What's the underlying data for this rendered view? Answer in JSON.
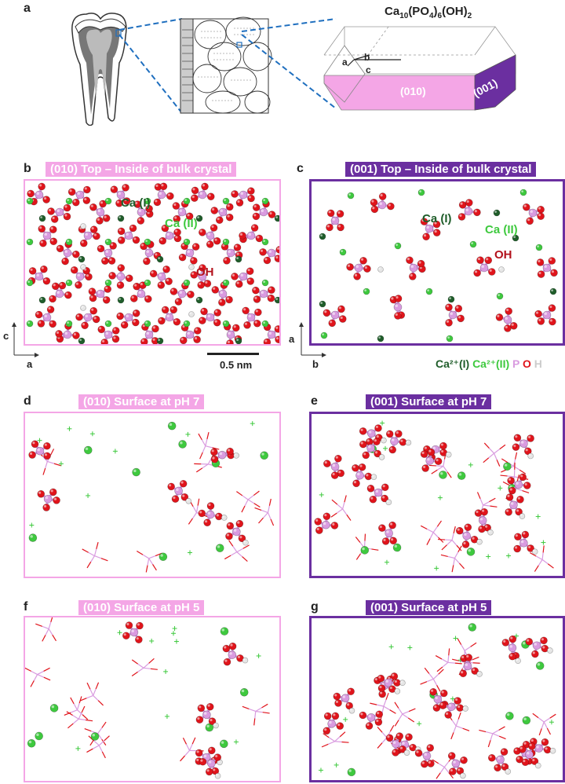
{
  "panel_a": {
    "label": "a",
    "formula_base": "Ca",
    "formula_sub1": "10",
    "formula_mid": "(PO",
    "formula_sub2": "4",
    "formula_mid2": ")",
    "formula_sub3": "6",
    "formula_end": "(OH)",
    "formula_sub4": "2",
    "face_010": "(010)",
    "face_001": "(001)",
    "axis_a": "a",
    "axis_b": "b",
    "axis_c": "c"
  },
  "panel_b": {
    "label": "b",
    "title": "(010) Top – Inside of bulk crystal",
    "ca1": "Ca (I)",
    "ca2": "Ca (II)",
    "oh": "OH",
    "axis_v": "c",
    "axis_h": "a",
    "scale": "0.5 nm"
  },
  "panel_c": {
    "label": "c",
    "title": "(001) Top – Inside of bulk crystal",
    "ca1": "Ca (I)",
    "ca2": "Ca (II)",
    "oh": "OH",
    "axis_v": "a",
    "axis_h": "b",
    "legend": {
      "ca1": "Ca²⁺(I)",
      "ca2": "Ca²⁺(II)",
      "p": "P",
      "o": "O",
      "h": "H"
    }
  },
  "panel_d": {
    "label": "d",
    "title": "(010) Surface at pH 7"
  },
  "panel_e": {
    "label": "e",
    "title": "(001) Surface at pH 7"
  },
  "panel_f": {
    "label": "f",
    "title": "(010) Surface at pH 5"
  },
  "panel_g": {
    "label": "g",
    "title": "(001) Surface at pH 5"
  },
  "colors": {
    "pink": "#f4a6e6",
    "purple": "#6b2fa0",
    "ca1": "#1f5d2a",
    "ca2": "#3ec93e",
    "phosphorus": "#d99be0",
    "oxygen": "#e0141b",
    "hydrogen": "#e6e6e6",
    "dashed_blue": "#1f6fbf"
  }
}
